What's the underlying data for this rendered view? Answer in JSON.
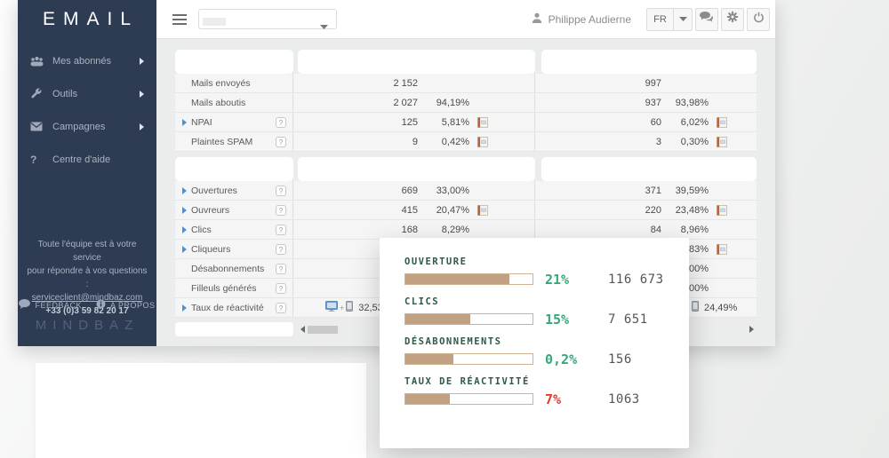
{
  "app": {
    "logo_text": "EMAIL",
    "brand_text": "MINDBAZ"
  },
  "sidebar": {
    "items": [
      {
        "label": "Mes abonnés",
        "icon": "users-icon",
        "arrow": true
      },
      {
        "label": "Outils",
        "icon": "wrench-icon",
        "arrow": true
      },
      {
        "label": "Campagnes",
        "icon": "envelope-icon",
        "arrow": true
      },
      {
        "label": "Centre d'aide",
        "icon": "question-icon",
        "arrow": false
      }
    ],
    "support_line1": "Toute l'équipe est à votre service",
    "support_line2": "pour répondre à vos questions :",
    "support_email": "serviceclient@mindbaz.com",
    "support_phone": "+33 (0)3 59 82 20 17",
    "feedback_label": "FEEDBACK",
    "about_label": "A PROPOS"
  },
  "topbar": {
    "user_name": "Philippe Audierne",
    "language_label": "FR",
    "buttons": [
      "chat-icon",
      "gear-icon",
      "power-icon"
    ]
  },
  "stats_table": {
    "sections": [
      {
        "rows": [
          {
            "label": "Mails envoyés",
            "expand": false,
            "help": false,
            "g1": {
              "value": "2 152",
              "pct": ""
            },
            "g2": {
              "value": "997",
              "pct": ""
            }
          },
          {
            "label": "Mails aboutis",
            "expand": false,
            "help": false,
            "g1": {
              "value": "2 027",
              "pct": "94,19%"
            },
            "g2": {
              "value": "937",
              "pct": "93,98%"
            }
          },
          {
            "label": "NPAI",
            "expand": true,
            "help": true,
            "g1": {
              "value": "125",
              "pct": "5,81%",
              "icon": true
            },
            "g2": {
              "value": "60",
              "pct": "6,02%",
              "icon": true
            }
          },
          {
            "label": "Plaintes SPAM",
            "expand": false,
            "help": true,
            "g1": {
              "value": "9",
              "pct": "0,42%",
              "icon": true
            },
            "g2": {
              "value": "3",
              "pct": "0,30%",
              "icon": true
            }
          }
        ]
      },
      {
        "rows": [
          {
            "label": "Ouvertures",
            "expand": true,
            "help": true,
            "g1": {
              "value": "669",
              "pct": "33,00%"
            },
            "g2": {
              "value": "371",
              "pct": "39,59%"
            }
          },
          {
            "label": "Ouvreurs",
            "expand": true,
            "help": true,
            "g1": {
              "value": "415",
              "pct": "20,47%",
              "icon": true
            },
            "g2": {
              "value": "220",
              "pct": "23,48%",
              "icon": true
            }
          },
          {
            "label": "Clics",
            "expand": true,
            "help": true,
            "g1": {
              "value": "168",
              "pct": "8,29%"
            },
            "g2": {
              "value": "84",
              "pct": "8,96%"
            }
          },
          {
            "label": "Cliqueurs",
            "expand": true,
            "help": true,
            "g1": {
              "value": "",
              "pct": ""
            },
            "g2": {
              "value": "",
              "pct": ",83%",
              "icon": true
            }
          },
          {
            "label": "Désabonnements",
            "expand": false,
            "help": true,
            "g1": {
              "value": "",
              "pct": ""
            },
            "g2": {
              "value": "",
              "pct": ",00%"
            }
          },
          {
            "label": "Filleuls générés",
            "expand": false,
            "help": true,
            "g1": {
              "value": "",
              "pct": ""
            },
            "g2": {
              "value": "",
              "pct": ",00%"
            }
          },
          {
            "label": "Taux de réactivité",
            "expand": true,
            "help": true,
            "g1": {
              "devices": [
                "desktop-icon",
                "plus",
                "mobile-icon"
              ],
              "value": "32,53%"
            },
            "g2": {
              "devices": [
                "mobile-icon"
              ],
              "value": "24,49%"
            }
          }
        ]
      }
    ]
  },
  "summary_card": {
    "items": [
      {
        "label": "OUVERTURE",
        "bar_percent": 82,
        "percent_text": "21%",
        "percent_color": "#35a878",
        "count": "116 673"
      },
      {
        "label": "CLICS",
        "bar_percent": 51,
        "percent_text": "15%",
        "percent_color": "#35a878",
        "count": "7 651"
      },
      {
        "label": "DÉSABONNEMENTS",
        "bar_percent": 38,
        "percent_text": "0,2%",
        "percent_color": "#35a878",
        "count": "156"
      },
      {
        "label": "TAUX DE RÉACTIVITÉ",
        "bar_percent": 35,
        "percent_text": "7%",
        "percent_color": "#e13b30",
        "count": "1063"
      }
    ]
  },
  "colors": {
    "sidebar_bg": "#2d3b53",
    "expand_triangle_blue": "#4a90d9",
    "bar_fill_tan": "#c2a182",
    "bar_border_tan": "#cdb296",
    "card_label_teal": "#2e584c",
    "positive_green": "#35a878",
    "negative_red": "#e13b30"
  }
}
